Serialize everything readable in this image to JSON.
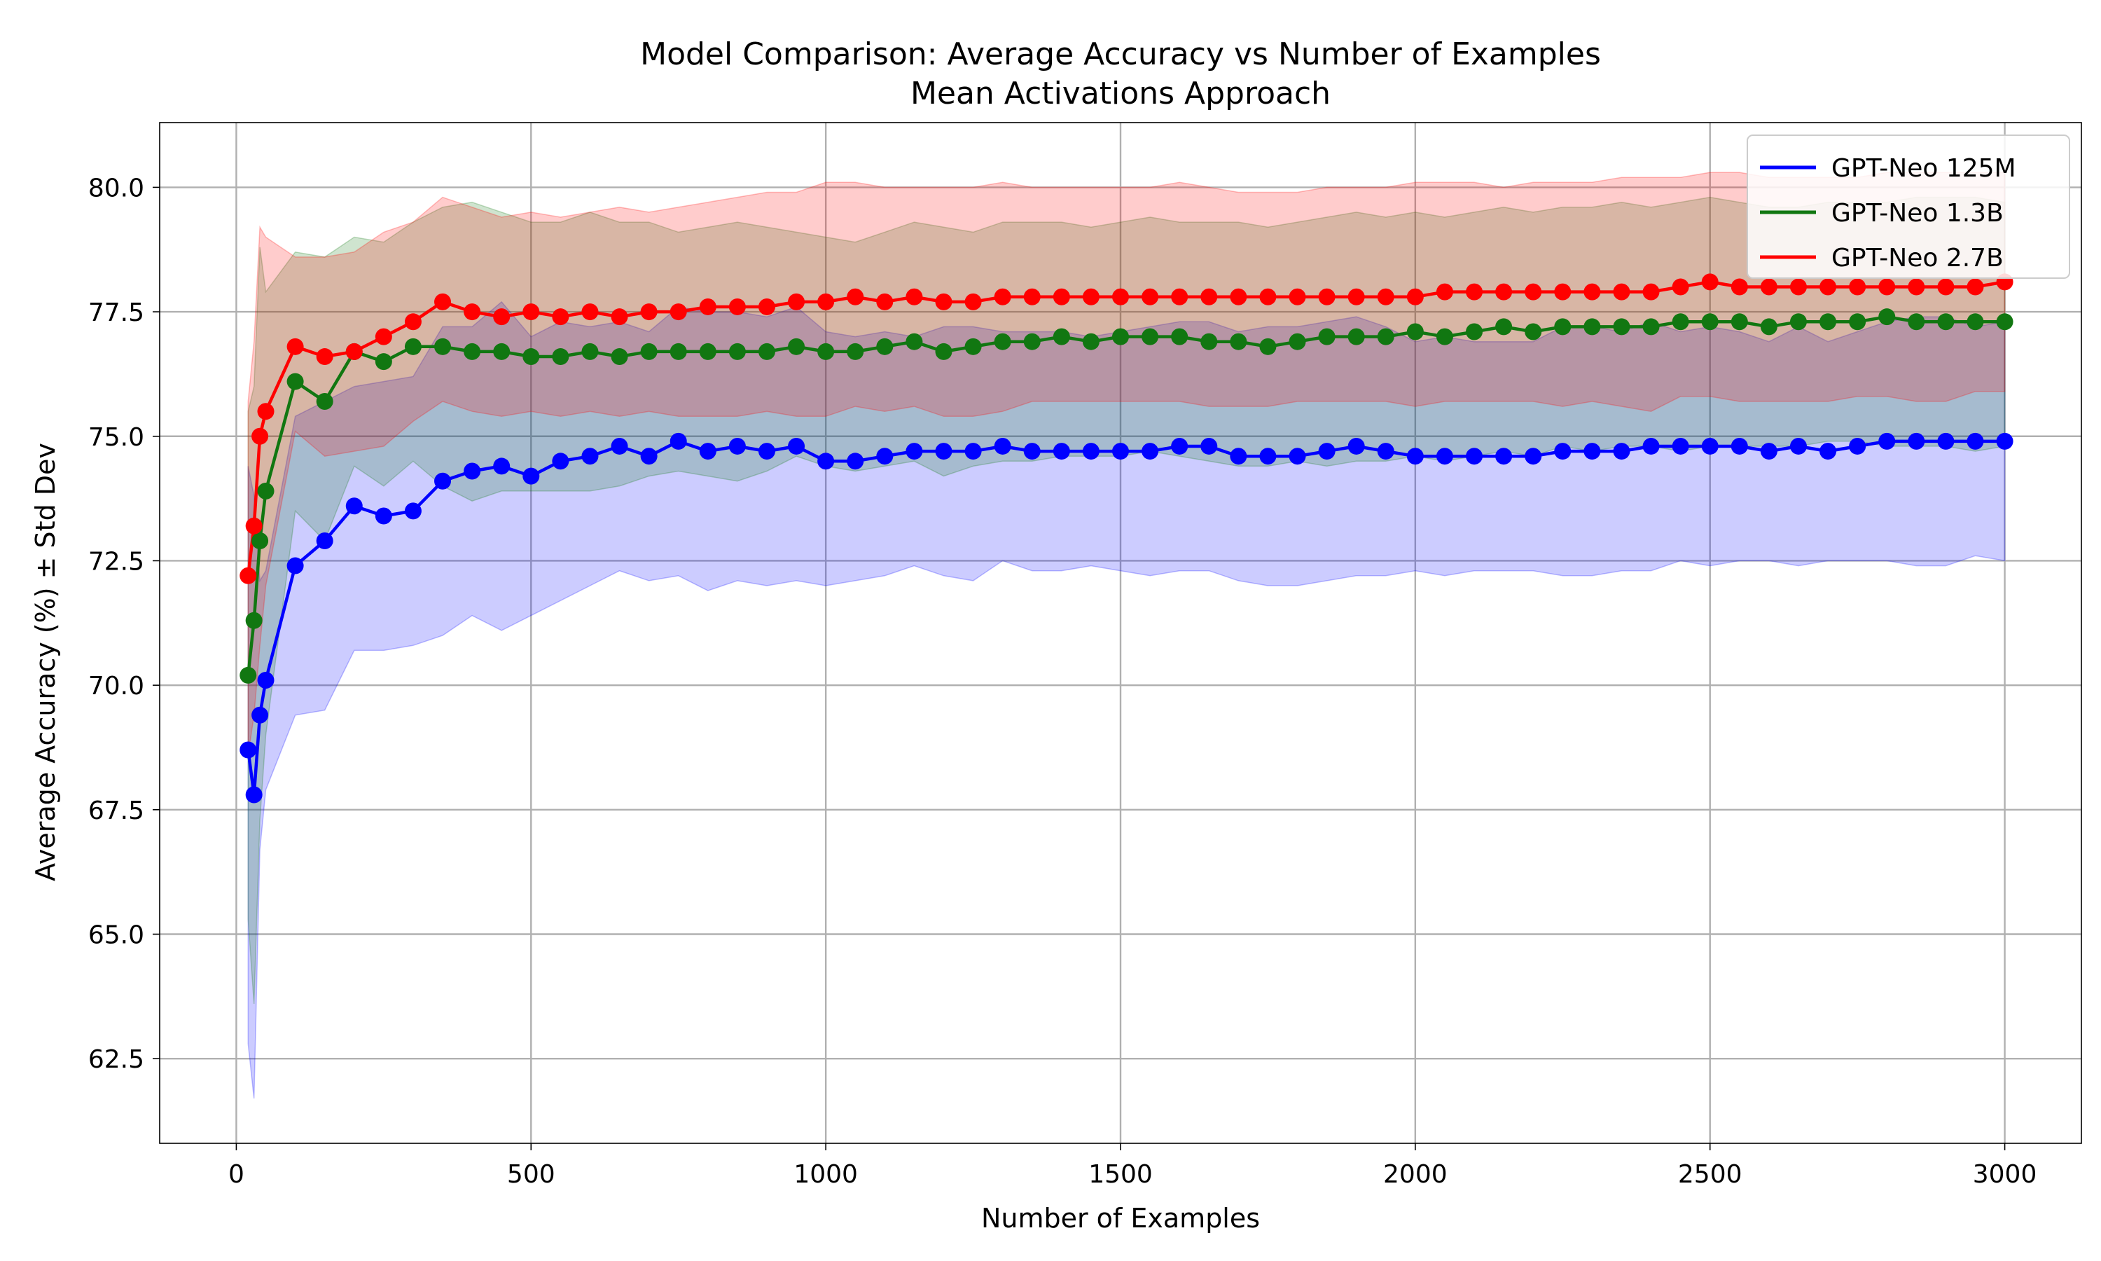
{
  "chart_data": {
    "type": "line",
    "title": "Model Comparison: Average Accuracy vs Number of Examples",
    "subtitle": "Mean Activations Approach",
    "xlabel": "Number of Examples",
    "ylabel": "Average Accuracy (%) ± Std Dev",
    "xlim": [
      -130,
      3130
    ],
    "ylim": [
      60.8,
      81.3
    ],
    "xticks": [
      0,
      500,
      1000,
      1500,
      2000,
      2500,
      3000
    ],
    "xtick_labels": [
      "0",
      "500",
      "1000",
      "1500",
      "2000",
      "2500",
      "3000"
    ],
    "yticks": [
      62.5,
      65.0,
      67.5,
      70.0,
      72.5,
      75.0,
      77.5,
      80.0
    ],
    "ytick_labels": [
      "62.5",
      "65.0",
      "67.5",
      "70.0",
      "72.5",
      "75.0",
      "77.5",
      "80.0"
    ],
    "grid": true,
    "legend_position": "top-right",
    "x": [
      20,
      30,
      40,
      50,
      100,
      150,
      200,
      250,
      300,
      350,
      400,
      450,
      500,
      550,
      600,
      650,
      700,
      750,
      800,
      850,
      900,
      950,
      1000,
      1050,
      1100,
      1150,
      1200,
      1250,
      1300,
      1350,
      1400,
      1450,
      1500,
      1550,
      1600,
      1650,
      1700,
      1750,
      1800,
      1850,
      1900,
      1950,
      2000,
      2050,
      2100,
      2150,
      2200,
      2250,
      2300,
      2350,
      2400,
      2450,
      2500,
      2550,
      2600,
      2650,
      2700,
      2750,
      2800,
      2850,
      2900,
      2950,
      3000
    ],
    "series": [
      {
        "name": "GPT-Neo 125M",
        "color": "#0000ff",
        "values": [
          68.7,
          67.8,
          69.4,
          70.1,
          72.4,
          72.9,
          73.6,
          73.4,
          73.5,
          74.1,
          74.3,
          74.4,
          74.2,
          74.5,
          74.6,
          74.8,
          74.6,
          74.9,
          74.7,
          74.8,
          74.7,
          74.8,
          74.5,
          74.5,
          74.6,
          74.7,
          74.7,
          74.7,
          74.8,
          74.7,
          74.7,
          74.7,
          74.7,
          74.7,
          74.8,
          74.8,
          74.6,
          74.6,
          74.6,
          74.7,
          74.8,
          74.7,
          74.6,
          74.6,
          74.6,
          74.6,
          74.6,
          74.7,
          74.7,
          74.7,
          74.8,
          74.8,
          74.8,
          74.8,
          74.7,
          74.8,
          74.7,
          74.8,
          74.9,
          74.9,
          74.9,
          74.9,
          74.9
        ],
        "std_lower": [
          62.8,
          61.7,
          66.7,
          67.9,
          69.4,
          69.5,
          70.7,
          70.7,
          70.8,
          71.0,
          71.4,
          71.1,
          71.4,
          71.7,
          72.0,
          72.3,
          72.1,
          72.2,
          71.9,
          72.1,
          72.0,
          72.1,
          72.0,
          72.1,
          72.2,
          72.4,
          72.2,
          72.1,
          72.5,
          72.3,
          72.3,
          72.4,
          72.3,
          72.2,
          72.3,
          72.3,
          72.1,
          72.0,
          72.0,
          72.1,
          72.2,
          72.2,
          72.3,
          72.2,
          72.3,
          72.3,
          72.3,
          72.2,
          72.2,
          72.3,
          72.3,
          72.5,
          72.4,
          72.5,
          72.5,
          72.4,
          72.5,
          72.5,
          72.5,
          72.4,
          72.4,
          72.6,
          72.5
        ],
        "std_upper": [
          74.4,
          73.8,
          72.1,
          72.3,
          75.4,
          75.7,
          76.0,
          76.1,
          76.2,
          77.2,
          77.2,
          77.7,
          77.0,
          77.3,
          77.2,
          77.3,
          77.1,
          77.6,
          77.5,
          77.5,
          77.4,
          77.6,
          77.1,
          77.0,
          77.1,
          77.0,
          77.2,
          77.2,
          77.1,
          77.1,
          77.1,
          77.0,
          77.1,
          77.2,
          77.3,
          77.3,
          77.1,
          77.2,
          77.2,
          77.3,
          77.4,
          77.2,
          76.9,
          77.0,
          76.9,
          76.9,
          76.9,
          77.2,
          77.2,
          77.1,
          77.3,
          77.1,
          77.2,
          77.1,
          76.9,
          77.2,
          76.9,
          77.1,
          77.3,
          77.4,
          77.4,
          77.2,
          77.3
        ]
      },
      {
        "name": "GPT-Neo 1.3B",
        "color": "#117711",
        "values": [
          70.2,
          71.3,
          72.9,
          73.9,
          76.1,
          75.7,
          76.7,
          76.5,
          76.8,
          76.8,
          76.7,
          76.7,
          76.6,
          76.6,
          76.7,
          76.6,
          76.7,
          76.7,
          76.7,
          76.7,
          76.7,
          76.8,
          76.7,
          76.7,
          76.8,
          76.9,
          76.7,
          76.8,
          76.9,
          76.9,
          77.0,
          76.9,
          77.0,
          77.0,
          77.0,
          76.9,
          76.9,
          76.8,
          76.9,
          77.0,
          77.0,
          77.0,
          77.1,
          77.0,
          77.1,
          77.2,
          77.1,
          77.2,
          77.2,
          77.2,
          77.2,
          77.3,
          77.3,
          77.3,
          77.2,
          77.3,
          77.3,
          77.3,
          77.4,
          77.3,
          77.3,
          77.3,
          77.3
        ],
        "std_lower": [
          65.3,
          63.6,
          67.3,
          69.0,
          73.5,
          72.9,
          74.4,
          74.0,
          74.5,
          74.0,
          73.7,
          73.9,
          73.9,
          73.9,
          73.9,
          74.0,
          74.2,
          74.3,
          74.2,
          74.1,
          74.3,
          74.6,
          74.4,
          74.3,
          74.4,
          74.5,
          74.2,
          74.4,
          74.5,
          74.5,
          74.6,
          74.6,
          74.6,
          74.7,
          74.6,
          74.5,
          74.4,
          74.4,
          74.5,
          74.4,
          74.5,
          74.5,
          74.6,
          74.5,
          74.6,
          74.7,
          74.6,
          74.8,
          74.7,
          74.8,
          74.8,
          74.7,
          74.8,
          74.8,
          74.8,
          74.8,
          74.9,
          74.9,
          74.8,
          74.8,
          74.8,
          74.7,
          74.8
        ],
        "std_upper": [
          75.5,
          76.0,
          78.8,
          77.9,
          78.7,
          78.6,
          79.0,
          78.9,
          79.3,
          79.6,
          79.7,
          79.5,
          79.3,
          79.3,
          79.5,
          79.3,
          79.3,
          79.1,
          79.2,
          79.3,
          79.2,
          79.1,
          79.0,
          78.9,
          79.1,
          79.3,
          79.2,
          79.1,
          79.3,
          79.3,
          79.3,
          79.2,
          79.3,
          79.4,
          79.3,
          79.3,
          79.3,
          79.2,
          79.3,
          79.4,
          79.5,
          79.4,
          79.5,
          79.4,
          79.5,
          79.6,
          79.5,
          79.6,
          79.6,
          79.7,
          79.6,
          79.7,
          79.8,
          79.7,
          79.6,
          79.6,
          79.7,
          79.7,
          79.7,
          79.8,
          79.8,
          79.8,
          79.7
        ]
      },
      {
        "name": "GPT-Neo 2.7B",
        "color": "#ff0000",
        "values": [
          72.2,
          73.2,
          75.0,
          75.5,
          76.8,
          76.6,
          76.7,
          77.0,
          77.3,
          77.7,
          77.5,
          77.4,
          77.5,
          77.4,
          77.5,
          77.4,
          77.5,
          77.5,
          77.6,
          77.6,
          77.6,
          77.7,
          77.7,
          77.8,
          77.7,
          77.8,
          77.7,
          77.7,
          77.8,
          77.8,
          77.8,
          77.8,
          77.8,
          77.8,
          77.8,
          77.8,
          77.8,
          77.8,
          77.8,
          77.8,
          77.8,
          77.8,
          77.8,
          77.9,
          77.9,
          77.9,
          77.9,
          77.9,
          77.9,
          77.9,
          77.9,
          78.0,
          78.1,
          78.0,
          78.0,
          78.0,
          78.0,
          78.0,
          78.0,
          78.0,
          78.0,
          78.0,
          78.1
        ],
        "std_lower": [
          68.6,
          69.4,
          70.8,
          72.0,
          75.1,
          74.6,
          74.7,
          74.8,
          75.3,
          75.7,
          75.5,
          75.4,
          75.5,
          75.4,
          75.5,
          75.4,
          75.5,
          75.4,
          75.4,
          75.4,
          75.5,
          75.4,
          75.4,
          75.6,
          75.5,
          75.6,
          75.4,
          75.4,
          75.5,
          75.7,
          75.7,
          75.7,
          75.7,
          75.7,
          75.7,
          75.6,
          75.6,
          75.6,
          75.7,
          75.7,
          75.7,
          75.7,
          75.6,
          75.7,
          75.7,
          75.7,
          75.7,
          75.6,
          75.7,
          75.6,
          75.5,
          75.8,
          75.8,
          75.7,
          75.7,
          75.7,
          75.7,
          75.8,
          75.8,
          75.7,
          75.7,
          75.9,
          75.9
        ],
        "std_upper": [
          75.7,
          76.9,
          79.2,
          79.0,
          78.6,
          78.6,
          78.7,
          79.1,
          79.3,
          79.8,
          79.6,
          79.4,
          79.5,
          79.4,
          79.5,
          79.6,
          79.5,
          79.6,
          79.7,
          79.8,
          79.9,
          79.9,
          80.1,
          80.1,
          80.0,
          80.0,
          80.0,
          80.0,
          80.1,
          80.0,
          80.0,
          80.0,
          80.0,
          80.0,
          80.1,
          80.0,
          79.9,
          79.9,
          79.9,
          80.0,
          80.0,
          80.0,
          80.1,
          80.1,
          80.1,
          80.0,
          80.1,
          80.1,
          80.1,
          80.2,
          80.2,
          80.2,
          80.3,
          80.3,
          80.2,
          80.2,
          80.2,
          80.2,
          80.3,
          80.3,
          80.3,
          80.3,
          80.3
        ]
      }
    ]
  }
}
